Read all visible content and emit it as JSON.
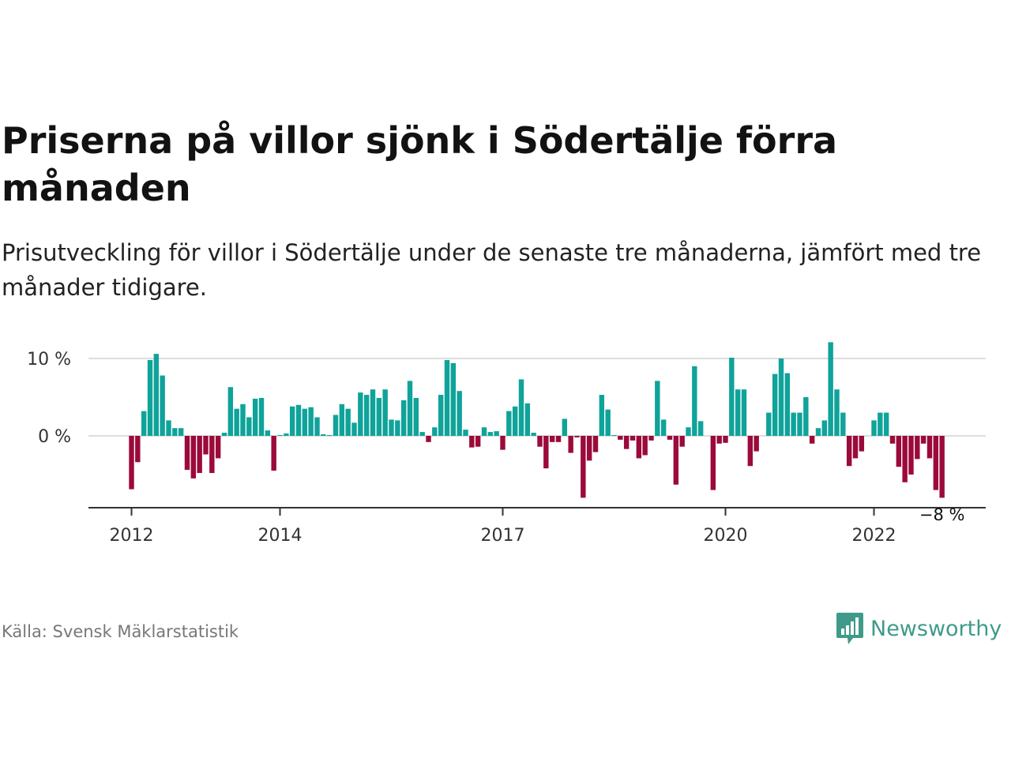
{
  "title": "Priserna på villor sjönk i Södertälje förra månaden",
  "subtitle": "Prisutveckling för villor i Södertälje under de senaste tre månaderna, jämfört med tre månader tidigare.",
  "source": "Källa: Svensk Mäklarstatistik",
  "brand": "Newsworthy",
  "colors": {
    "positive": "#0fa39a",
    "negative": "#9b0a3a",
    "brand": "#3f9a8a",
    "grid": "#dddddd",
    "axis": "#333333"
  },
  "chart_data": {
    "type": "bar",
    "ylim": [
      -9.5,
      12.5
    ],
    "yticks": [
      {
        "value": 0,
        "label": "0 %"
      },
      {
        "value": 10,
        "label": "10 %"
      }
    ],
    "xticks": [
      {
        "value": 2012,
        "label": "2012"
      },
      {
        "value": 2014,
        "label": "2014"
      },
      {
        "value": 2017,
        "label": "2017"
      },
      {
        "value": 2020,
        "label": "2020"
      },
      {
        "value": 2022,
        "label": "2022"
      }
    ],
    "annotation": "−8 %",
    "start": "2012-01",
    "values": [
      -6.9,
      -3.4,
      3.2,
      9.8,
      10.6,
      7.8,
      2.0,
      1.0,
      1.0,
      -4.4,
      -5.5,
      -4.8,
      -2.4,
      -4.8,
      -2.9,
      0.4,
      6.3,
      3.5,
      4.1,
      2.4,
      4.8,
      4.9,
      0.7,
      -4.5,
      0.1,
      0.3,
      3.8,
      4.0,
      3.5,
      3.7,
      2.4,
      0.2,
      0.1,
      2.7,
      4.1,
      3.5,
      1.7,
      5.6,
      5.3,
      6.0,
      4.9,
      6.0,
      2.1,
      2.0,
      4.6,
      7.1,
      4.9,
      0.5,
      -0.8,
      1.1,
      5.3,
      9.8,
      9.4,
      5.8,
      0.8,
      -1.5,
      -1.4,
      1.1,
      0.5,
      0.6,
      -1.8,
      3.2,
      3.8,
      7.3,
      4.2,
      0.4,
      -1.4,
      -4.2,
      -0.8,
      -0.8,
      2.2,
      -2.2,
      -0.2,
      -8.0,
      -3.2,
      -2.1,
      5.3,
      3.4,
      0.1,
      -0.5,
      -1.7,
      -0.6,
      -2.9,
      -2.5,
      -0.6,
      7.1,
      2.1,
      -0.5,
      -6.3,
      -1.4,
      1.1,
      9.0,
      1.9,
      0.0,
      -7.0,
      -1.0,
      -0.9,
      10.1,
      6.0,
      6.0,
      -3.9,
      -2.0,
      0.0,
      3.0,
      8.0,
      10.0,
      8.1,
      3.0,
      3.0,
      5.0,
      -1.0,
      1.0,
      2.0,
      12.1,
      6.0,
      3.0,
      -3.9,
      -2.9,
      -2.0,
      0.0,
      2.0,
      3.0,
      3.0,
      -1.0,
      -4.0,
      -6.0,
      -5.0,
      -3.0,
      -1.0,
      -2.9,
      -7.0,
      -8.0
    ]
  }
}
